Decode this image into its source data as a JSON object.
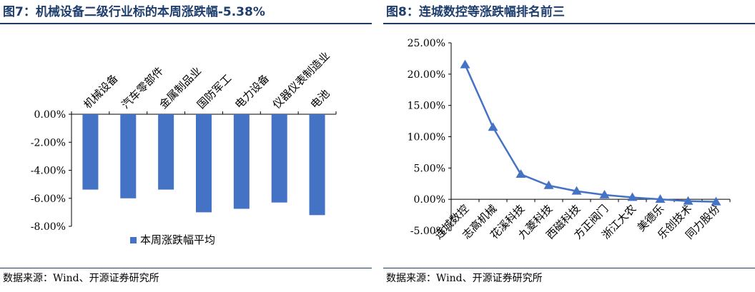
{
  "left_panel": {
    "title": "图7：机械设备二级行业标的本周涨跌幅-5.38%",
    "source": "数据来源：Wind、开源证券研究所"
  },
  "right_panel": {
    "title": "图8：连城数控等涨跌幅排名前三",
    "source": "数据来源：Wind、开源证券研究所"
  },
  "chart_data": [
    {
      "type": "bar",
      "title": "图7：机械设备二级行业标的本周涨跌幅-5.38%",
      "categories": [
        "机械设备",
        "汽车零部件",
        "金属制品业",
        "国防军工",
        "电力设备",
        "仪器仪表制造业",
        "电池"
      ],
      "series": [
        {
          "name": "本周涨跌幅平均",
          "values": [
            -5.38,
            -6.0,
            -5.38,
            -7.0,
            -6.75,
            -6.3,
            -7.2
          ],
          "color": "#4472c4"
        }
      ],
      "ylim": [
        -8,
        0
      ],
      "yticks": [
        0,
        -2,
        -4,
        -6,
        -8
      ],
      "ytick_labels": [
        "0.00%",
        "-2.00%",
        "-4.00%",
        "-6.00%",
        "-8.00%"
      ],
      "legend_position": "bottom",
      "xlabel": "",
      "ylabel": ""
    },
    {
      "type": "line",
      "title": "图8：连城数控等涨跌幅排名前三",
      "categories": [
        "连城数控",
        "志高机械",
        "花溪科技",
        "九菱科技",
        "西磁科技",
        "方正阀门",
        "浙江大农",
        "美德乐",
        "乐创技术",
        "同力股份"
      ],
      "series": [
        {
          "name": "涨跌幅",
          "values": [
            21.5,
            11.5,
            4.0,
            2.2,
            1.3,
            0.7,
            0.3,
            0.0,
            -0.3,
            -0.4
          ],
          "color": "#4472c4"
        }
      ],
      "ylim": [
        -5,
        25
      ],
      "yticks": [
        25,
        20,
        15,
        10,
        5,
        0,
        -5
      ],
      "ytick_labels": [
        "25.00%",
        "20.00%",
        "15.00%",
        "10.00%",
        "5.00%",
        "0.00%",
        "-5.00%"
      ],
      "xlabel": "",
      "ylabel": ""
    }
  ]
}
